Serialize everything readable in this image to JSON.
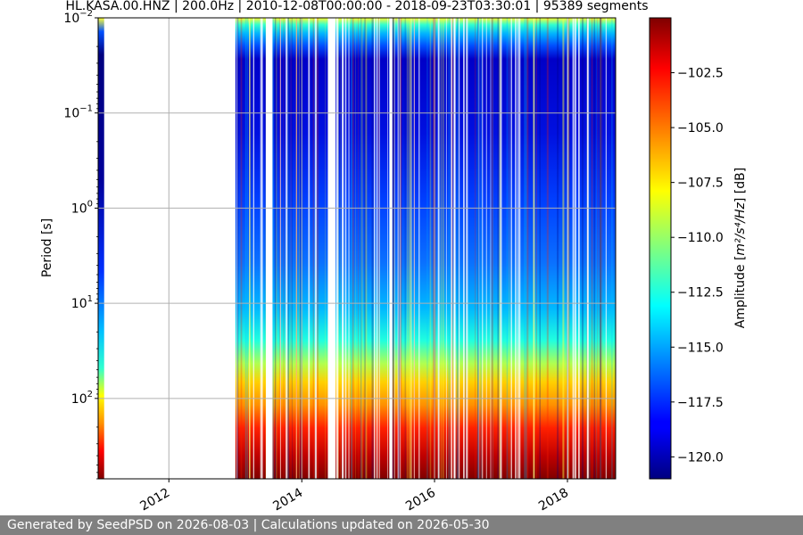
{
  "chart_data": {
    "type": "heatmap",
    "title": "HL.KASA.00.HNZ | 200.0Hz | 2010-12-08T00:00:00 - 2018-09-23T03:30:01 | 95389 segments",
    "xlabel": "",
    "ylabel": "Period [s]",
    "x_ticks": [
      "2012",
      "2014",
      "2016",
      "2018"
    ],
    "y_scale": "log",
    "y_axis_inverted": true,
    "ylim": [
      0.01,
      700
    ],
    "y_ticks": [
      {
        "base": "10",
        "exp": "−2"
      },
      {
        "base": "10",
        "exp": "−1"
      },
      {
        "base": "10",
        "exp": "0"
      },
      {
        "base": "10",
        "exp": "1"
      },
      {
        "base": "10",
        "exp": "2"
      }
    ],
    "xlim": [
      "2010-12-08",
      "2018-09-23"
    ],
    "data_coverage": [
      {
        "start": "2010-12-08",
        "end": "2011-01-10"
      },
      {
        "start": "2013-01-01",
        "end": "2018-09-23"
      }
    ],
    "grid": true,
    "colormap": "jet",
    "colorbar": {
      "label_prefix": "Amplitude [",
      "label_units": "m²/s⁴/Hz",
      "label_suffix": "] [dB]",
      "range": [
        -121.0,
        -100.0
      ],
      "ticks": [
        "−102.5",
        "−105.0",
        "−107.5",
        "−110.0",
        "−112.5",
        "−115.0",
        "−117.5",
        "−120.0"
      ]
    }
  },
  "footer": {
    "text": "Generated by SeedPSD on 2026-08-03 | Calculations updated on 2026-05-30",
    "background": "#808080"
  }
}
